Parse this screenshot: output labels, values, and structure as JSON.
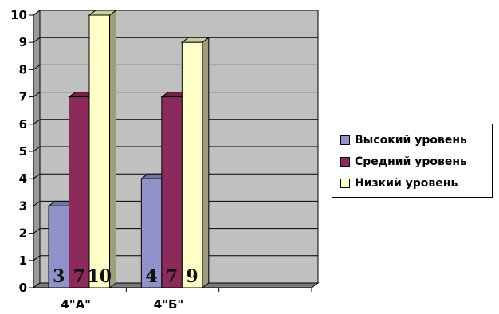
{
  "chart_data": {
    "type": "bar",
    "categories": [
      "4\"А\"",
      "4\"Б\"",
      ""
    ],
    "series": [
      {
        "name": "Высокий уровень",
        "values": [
          3,
          4,
          null
        ],
        "color": "#8f93c9"
      },
      {
        "name": "Средний уровень",
        "values": [
          7,
          7,
          null
        ],
        "color": "#8c2a5c"
      },
      {
        "name": "Низкий уровень",
        "values": [
          10,
          9,
          null
        ],
        "color": "#ffffc8"
      }
    ],
    "data_labels": [
      [
        "3",
        "7",
        "10"
      ],
      [
        "4",
        "7",
        "9"
      ]
    ],
    "ylim": [
      0,
      10
    ],
    "yticks": [
      "0",
      "1",
      "2",
      "3",
      "4",
      "5",
      "6",
      "7",
      "8",
      "9",
      "10"
    ],
    "grid": true,
    "plot_area_color": "#c0c0c0",
    "legend_position": "right",
    "three_d": true
  },
  "legend": {
    "items": [
      {
        "label": "Высокий уровень",
        "color": "#8f93c9"
      },
      {
        "label": "Средний уровень",
        "color": "#8c2a5c"
      },
      {
        "label": "Низкий уровень",
        "color": "#ffffc8"
      }
    ]
  }
}
